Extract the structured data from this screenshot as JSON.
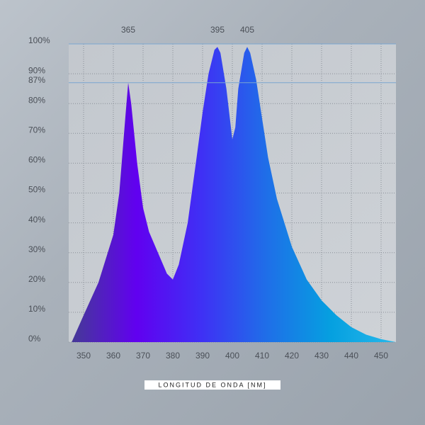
{
  "chart_data": {
    "type": "area",
    "x_label": "LONGITUD DE ONDA [NM]",
    "x": [
      346,
      350,
      355,
      360,
      362,
      364,
      365,
      366,
      368,
      370,
      372,
      375,
      378,
      380,
      382,
      385,
      388,
      390,
      392,
      394,
      395,
      396,
      398,
      400,
      401,
      402,
      404,
      405,
      406,
      408,
      410,
      412,
      415,
      420,
      425,
      430,
      435,
      440,
      445,
      450,
      455
    ],
    "values": [
      0,
      9,
      20,
      36,
      50,
      75,
      87,
      80,
      60,
      45,
      37,
      30,
      23,
      21,
      26,
      40,
      62,
      77,
      90,
      98,
      99,
      97,
      85,
      68,
      72,
      85,
      97,
      99,
      97,
      88,
      75,
      62,
      48,
      32,
      21,
      14,
      9,
      5,
      2.5,
      1,
      0
    ],
    "gradient": [
      "#453a96",
      "#6100f0",
      "#3f30f5",
      "#1f6ee8",
      "#05a0e0",
      "#28b8ea"
    ],
    "xlim": [
      345,
      455
    ],
    "ylim": [
      0,
      100
    ],
    "xticks": [
      350,
      360,
      370,
      380,
      390,
      400,
      410,
      420,
      430,
      440,
      450
    ],
    "yticks": [
      {
        "value": 0,
        "label": "0%"
      },
      {
        "value": 10,
        "label": "10%"
      },
      {
        "value": 20,
        "label": "20%"
      },
      {
        "value": 30,
        "label": "30%"
      },
      {
        "value": 40,
        "label": "40%"
      },
      {
        "value": 50,
        "label": "50%"
      },
      {
        "value": 60,
        "label": "60%"
      },
      {
        "value": 70,
        "label": "70%"
      },
      {
        "value": 80,
        "label": "80%"
      },
      {
        "value": 90,
        "label": "90%"
      },
      {
        "value": 100,
        "label": "100%"
      }
    ],
    "reference_line": {
      "value": 87,
      "label": "87%"
    },
    "peak_labels": [
      365,
      395,
      405
    ],
    "grid": true
  }
}
